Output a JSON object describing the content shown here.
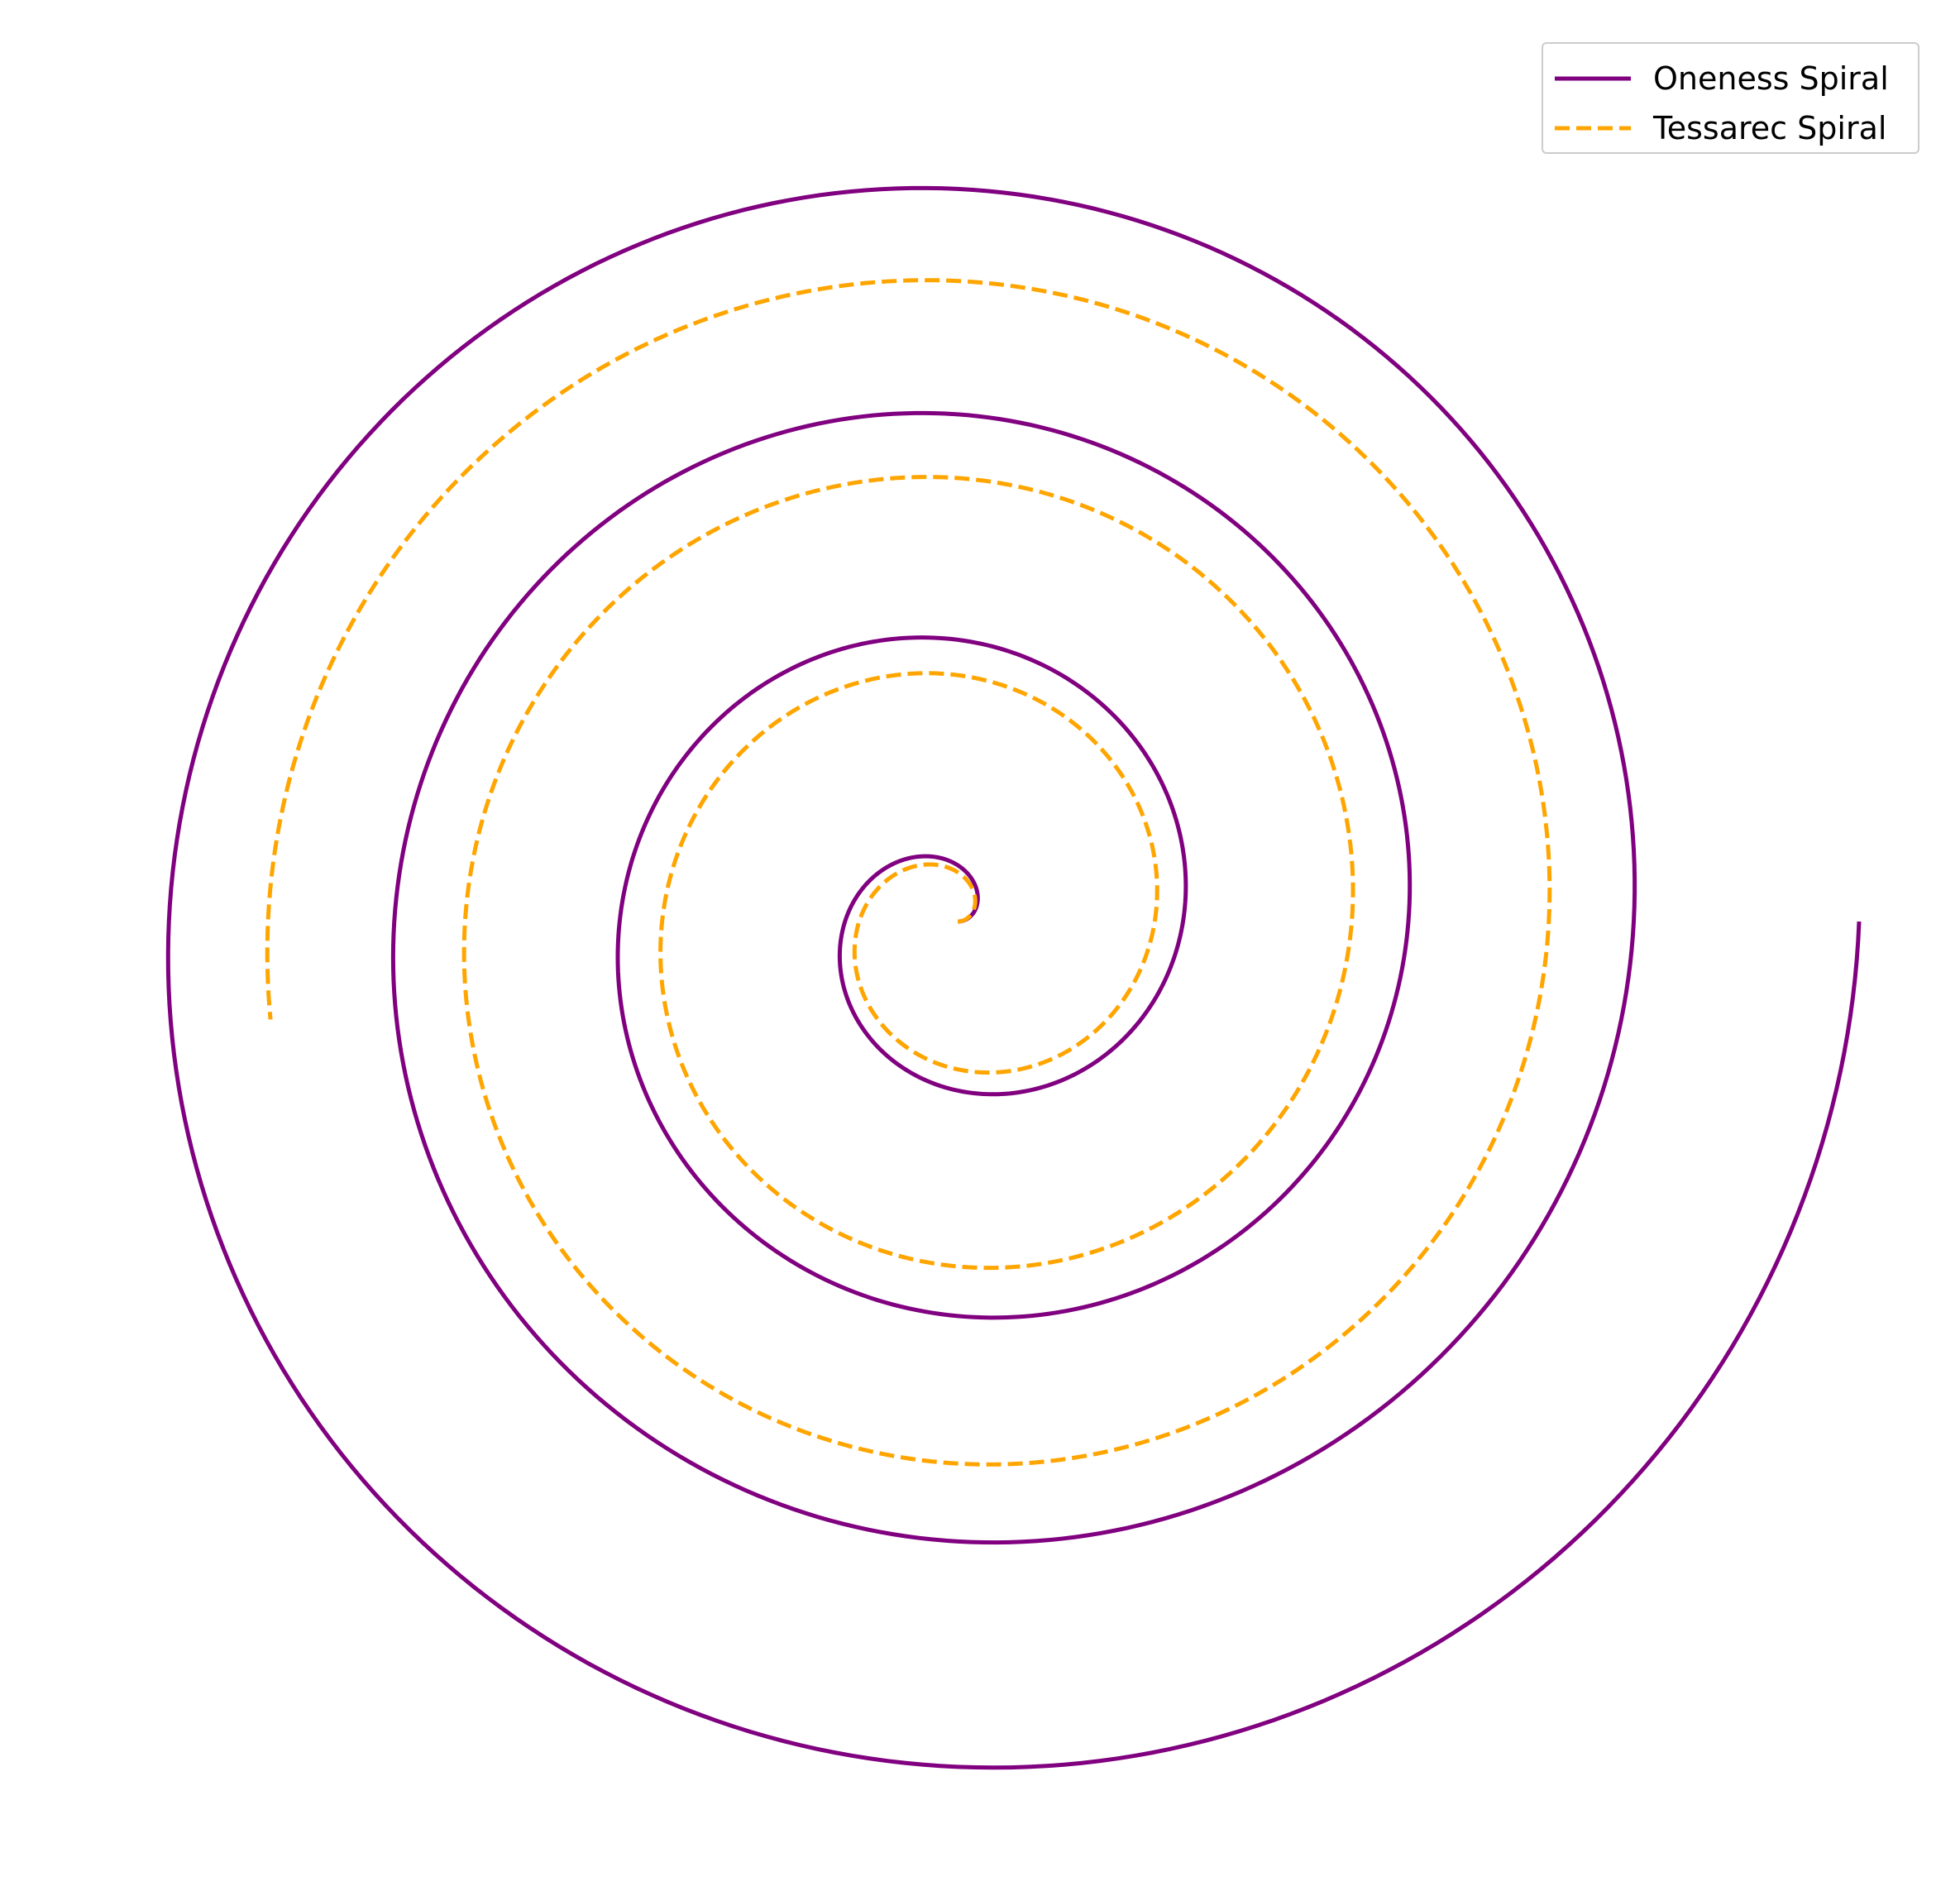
{
  "chart_data": {
    "type": "line",
    "projection": "polar",
    "axes_visible": false,
    "grid": false,
    "legend_position": "top-right",
    "series": [
      {
        "name": "Oneness Spiral",
        "color": "#800080",
        "linestyle": "solid",
        "theta_range": [
          0,
          25.1327
        ],
        "r_range": [
          0,
          1.0
        ]
      },
      {
        "name": "Tessarec Spiral",
        "color": "#FFA500",
        "linestyle": "dashed",
        "theta_range": [
          0,
          22.1327
        ],
        "r_range": [
          0,
          0.77
        ]
      }
    ]
  }
}
